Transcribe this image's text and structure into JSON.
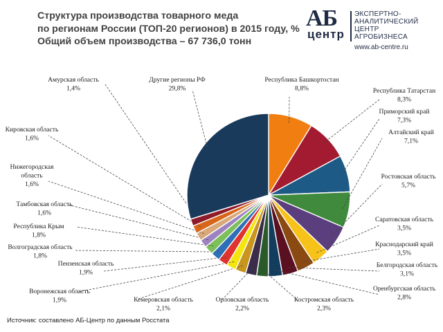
{
  "title": {
    "line1": "Структура производства товарного меда",
    "line2": "по регионам России (ТОП-20 регионов) в 2015 году, %",
    "line3": "Общий объем производства – 67 736,0 тонн"
  },
  "logo": {
    "mark_top": "АБ",
    "mark_bottom": "центр",
    "line1": "ЭКСПЕРТНО-",
    "line2": "АНАЛИТИЧЕСКИЙ",
    "line3": "ЦЕНТР",
    "line4": "АГРОБИЗНЕСА",
    "url": "www.ab-centre.ru"
  },
  "source": "Источник:  составлено АБ-Центр  по данным Росстата",
  "chart_data": {
    "type": "pie",
    "title": "Структура производства товарного меда по регионам России (ТОП-20 регионов) в 2015 году, %",
    "unit": "%",
    "slices": [
      {
        "label": "Республика Башкортостан",
        "value": 8.8,
        "display": "8,8%",
        "color": "#f07e10"
      },
      {
        "label": "Республика Татарстан",
        "value": 8.3,
        "display": "8,3%",
        "color": "#a31b30"
      },
      {
        "label": "Приморский край",
        "value": 7.3,
        "display": "7,3%",
        "color": "#1d5a85"
      },
      {
        "label": "Алтайский край",
        "value": 7.1,
        "display": "7,1%",
        "color": "#3f8a3d"
      },
      {
        "label": "Ростовская область",
        "value": 5.7,
        "display": "5,7%",
        "color": "#5b3e7d"
      },
      {
        "label": "Саратовская область",
        "value": 3.5,
        "display": "3,5%",
        "color": "#f7c21a"
      },
      {
        "label": "Краснодарский край",
        "value": 3.5,
        "display": "3,5%",
        "color": "#8a4a12"
      },
      {
        "label": "Белгородская область",
        "value": 3.1,
        "display": "3,1%",
        "color": "#5a1020"
      },
      {
        "label": "Оренбургская область",
        "value": 2.8,
        "display": "2,8%",
        "color": "#123d5e"
      },
      {
        "label": "Костромская область",
        "value": 2.3,
        "display": "2,3%",
        "color": "#2a5a2a"
      },
      {
        "label": "Орловская область",
        "value": 2.2,
        "display": "2,2%",
        "color": "#3a2c4a"
      },
      {
        "label": "Кемеровская область",
        "value": 2.1,
        "display": "2,1%",
        "color": "#c8961e"
      },
      {
        "label": "Воронежская область",
        "value": 1.9,
        "display": "1,9%",
        "color": "#f5e50f"
      },
      {
        "label": "Пензенская область",
        "value": 1.9,
        "display": "1,9%",
        "color": "#e0322e"
      },
      {
        "label": "Волгоградская область",
        "value": 1.8,
        "display": "1,8%",
        "color": "#2e6fb8"
      },
      {
        "label": "Республика Крым",
        "value": 1.8,
        "display": "1,8%",
        "color": "#7dbf5a"
      },
      {
        "label": "Тамбовская область",
        "value": 1.6,
        "display": "1,6%",
        "color": "#9d82c0"
      },
      {
        "label": "Нижегородская область",
        "value": 1.6,
        "display": "1,6%",
        "color": "#d8a878"
      },
      {
        "label": "Кировская область",
        "value": 1.6,
        "display": "1,6%",
        "color": "#d8661a"
      },
      {
        "label": "Амурская область",
        "value": 1.4,
        "display": "1,4%",
        "color": "#8e1a2a"
      },
      {
        "label": "Другие регионы РФ",
        "value": 29.8,
        "display": "29,8%",
        "color": "#1a3a5c"
      }
    ]
  }
}
